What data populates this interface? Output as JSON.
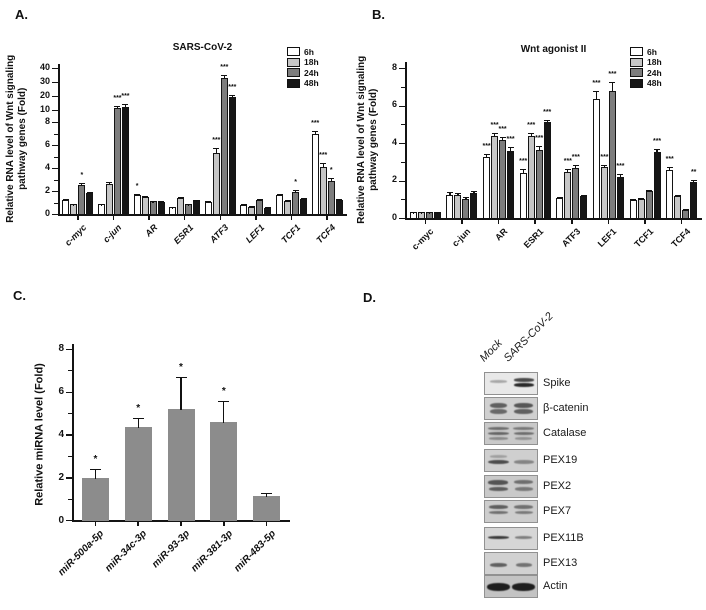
{
  "panel_letters": {
    "a": "A.",
    "b": "B.",
    "c": "C.",
    "d": "D."
  },
  "time_legend": [
    {
      "label": "6h",
      "color": "#ffffff"
    },
    {
      "label": "18h",
      "color": "#c6c6c6"
    },
    {
      "label": "24h",
      "color": "#7d7d7d"
    },
    {
      "label": "48h",
      "color": "#161616"
    }
  ],
  "chart_data": [
    {
      "id": "A",
      "type": "bar",
      "title": "SARS-CoV-2",
      "ylabel": [
        "Relative RNA level of Wnt signaling",
        "pathway genes (Fold)"
      ],
      "axis_break": true,
      "yticks_low": [
        0,
        2,
        4,
        6,
        8
      ],
      "yticks_high": [
        10,
        20,
        30,
        40
      ],
      "ylim": [
        0,
        40
      ],
      "legend_position": "top-right",
      "categories": [
        "c-myc",
        "c-jun",
        "AR",
        "ESR1",
        "ATF3",
        "LEF1",
        "TCF1",
        "TCF4"
      ],
      "series": [
        {
          "name": "6h",
          "color": "#ffffff",
          "values": [
            1.25,
            0.85,
            1.65,
            0.6,
            1.05,
            0.8,
            1.65,
            7.0
          ],
          "errors": [
            0.08,
            0.05,
            0.12,
            0.05,
            0.08,
            0.08,
            0.08,
            0.25
          ],
          "stars": [
            null,
            null,
            "*",
            null,
            null,
            null,
            null,
            "***"
          ]
        },
        {
          "name": "18h",
          "color": "#c6c6c6",
          "values": [
            0.85,
            2.65,
            1.5,
            1.35,
            5.3,
            0.65,
            1.15,
            4.1
          ],
          "errors": [
            0.05,
            0.1,
            0.1,
            0.1,
            0.4,
            0.05,
            0.08,
            0.3
          ],
          "stars": [
            null,
            null,
            null,
            null,
            "***",
            null,
            null,
            "***"
          ]
        },
        {
          "name": "24h",
          "color": "#7d7d7d",
          "values": [
            2.5,
            11.5,
            1.1,
            0.85,
            33.0,
            1.2,
            1.9,
            2.9
          ],
          "errors": [
            0.2,
            1.5,
            0.05,
            0.05,
            2.0,
            0.08,
            0.15,
            0.2
          ],
          "stars": [
            "*",
            "***",
            null,
            null,
            "***",
            null,
            "*",
            "*"
          ]
        },
        {
          "name": "48h",
          "color": "#161616",
          "values": [
            1.85,
            12.5,
            1.05,
            1.2,
            19.0,
            0.55,
            1.3,
            1.2
          ],
          "errors": [
            0.1,
            1.5,
            0.05,
            0.05,
            1.5,
            0.05,
            0.08,
            0.08
          ],
          "stars": [
            null,
            "***",
            null,
            null,
            "***",
            null,
            null,
            null
          ]
        }
      ]
    },
    {
      "id": "B",
      "type": "bar",
      "title": "Wnt agonist II",
      "ylabel": [
        "Relative RNA level of Wnt signaling",
        "pathway genes (Fold)"
      ],
      "axis_break": false,
      "yticks_low": [
        0,
        2,
        4,
        6,
        8
      ],
      "ylim": [
        0,
        8
      ],
      "legend_position": "top-right",
      "categories": [
        "c-myc",
        "c-jun",
        "AR",
        "ESR1",
        "ATF3",
        "LEF1",
        "TCF1",
        "TCF4"
      ],
      "series": [
        {
          "name": "6h",
          "color": "#ffffff",
          "values": [
            0.3,
            1.25,
            3.25,
            2.4,
            1.05,
            6.35,
            0.95,
            2.55
          ],
          "errors": [
            0.03,
            0.15,
            0.15,
            0.2,
            0.06,
            0.45,
            0.08,
            0.15
          ],
          "stars": [
            null,
            null,
            "***",
            "***",
            null,
            "***",
            null,
            "***"
          ]
        },
        {
          "name": "18h",
          "color": "#c6c6c6",
          "values": [
            0.3,
            1.25,
            4.35,
            4.4,
            2.45,
            2.7,
            1.0,
            1.15
          ],
          "errors": [
            0.03,
            0.1,
            0.2,
            0.15,
            0.15,
            0.15,
            0.06,
            0.1
          ],
          "stars": [
            null,
            null,
            "***",
            "***",
            "***",
            "***",
            null,
            null
          ]
        },
        {
          "name": "24h",
          "color": "#7d7d7d",
          "values": [
            0.3,
            1.0,
            4.15,
            3.65,
            2.65,
            6.75,
            1.45,
            0.45
          ],
          "errors": [
            0.03,
            0.1,
            0.15,
            0.2,
            0.2,
            0.5,
            0.06,
            0.05
          ],
          "stars": [
            null,
            null,
            "***",
            "***",
            "***",
            "***",
            null,
            null
          ]
        },
        {
          "name": "48h",
          "color": "#161616",
          "values": [
            0.3,
            1.35,
            3.6,
            5.1,
            1.15,
            2.2,
            3.5,
            1.9
          ],
          "errors": [
            0.03,
            0.1,
            0.2,
            0.15,
            0.06,
            0.15,
            0.2,
            0.12
          ],
          "stars": [
            null,
            null,
            "***",
            "***",
            null,
            "***",
            "***",
            "**"
          ]
        }
      ]
    },
    {
      "id": "C",
      "type": "bar",
      "title": "",
      "ylabel": [
        "Relative miRNA level (Fold)"
      ],
      "axis_break": false,
      "yticks_low": [
        0,
        2,
        4,
        6,
        8
      ],
      "ylim": [
        0,
        8
      ],
      "bar_color": "#8c8c8c",
      "categories": [
        "miR-500a-5p",
        "miR-34c-3p",
        "miR-93-3p",
        "miR-381-3p",
        "miR-483-5p"
      ],
      "values": [
        1.95,
        4.35,
        5.2,
        4.6,
        1.1
      ],
      "errors": [
        0.45,
        0.4,
        1.5,
        0.95,
        0.15
      ],
      "stars": [
        "*",
        "*",
        "*",
        "*",
        null
      ]
    }
  ],
  "blot": {
    "lane_labels": [
      "Mock",
      "SARS-CoV-2"
    ],
    "rows": [
      {
        "label": "Spike",
        "bg": "#e8e8e8",
        "mock": [
          [
            0.4,
            2.5,
            0.3,
            17
          ]
        ],
        "sars": [
          [
            0.34,
            3.5,
            0.75,
            20
          ],
          [
            0.58,
            4,
            0.9,
            20
          ]
        ]
      },
      {
        "label": "β-catenin",
        "bg": "#d0d0d0",
        "mock": [
          [
            0.38,
            5,
            0.6,
            17
          ],
          [
            0.62,
            5,
            0.55,
            17
          ]
        ],
        "sars": [
          [
            0.38,
            5,
            0.65,
            19
          ],
          [
            0.64,
            5,
            0.6,
            19
          ]
        ]
      },
      {
        "label": "Catalase",
        "bg": "#c9c9c9",
        "mock": [
          [
            0.26,
            3,
            0.5,
            21
          ],
          [
            0.5,
            3,
            0.55,
            21
          ],
          [
            0.74,
            2.5,
            0.35,
            19
          ]
        ],
        "sars": [
          [
            0.26,
            3,
            0.45,
            21
          ],
          [
            0.5,
            3,
            0.5,
            20
          ],
          [
            0.74,
            2.5,
            0.3,
            17
          ]
        ]
      },
      {
        "label": "PEX19",
        "bg": "#cfcfcf",
        "mock": [
          [
            0.3,
            2.5,
            0.25,
            17
          ],
          [
            0.56,
            4.5,
            0.7,
            21
          ]
        ],
        "sars": [
          [
            0.56,
            4,
            0.4,
            20
          ]
        ]
      },
      {
        "label": "PEX2",
        "bg": "#c9c9c9",
        "mock": [
          [
            0.3,
            4.5,
            0.65,
            20
          ],
          [
            0.62,
            4,
            0.6,
            19
          ]
        ],
        "sars": [
          [
            0.3,
            4,
            0.5,
            19
          ],
          [
            0.62,
            3.5,
            0.45,
            18
          ]
        ]
      },
      {
        "label": "PEX7",
        "bg": "#cdcdcd",
        "mock": [
          [
            0.3,
            4,
            0.6,
            19
          ],
          [
            0.54,
            3,
            0.5,
            19
          ]
        ],
        "sars": [
          [
            0.3,
            4,
            0.5,
            19
          ],
          [
            0.54,
            3,
            0.45,
            18
          ]
        ]
      },
      {
        "label": "PEX11B",
        "bg": "#d6d6d6",
        "mock": [
          [
            0.46,
            3,
            0.8,
            21
          ]
        ],
        "sars": [
          [
            0.46,
            2.5,
            0.45,
            17
          ]
        ]
      },
      {
        "label": "PEX13",
        "bg": "#d1d1d1",
        "mock": [
          [
            0.55,
            4,
            0.6,
            17
          ]
        ],
        "sars": [
          [
            0.55,
            4,
            0.5,
            16
          ]
        ]
      },
      {
        "label": "Actin",
        "bg": "#c3c3c3",
        "mock": [
          [
            0.5,
            8,
            0.95,
            23
          ]
        ],
        "sars": [
          [
            0.5,
            8,
            0.95,
            23
          ]
        ]
      }
    ]
  }
}
